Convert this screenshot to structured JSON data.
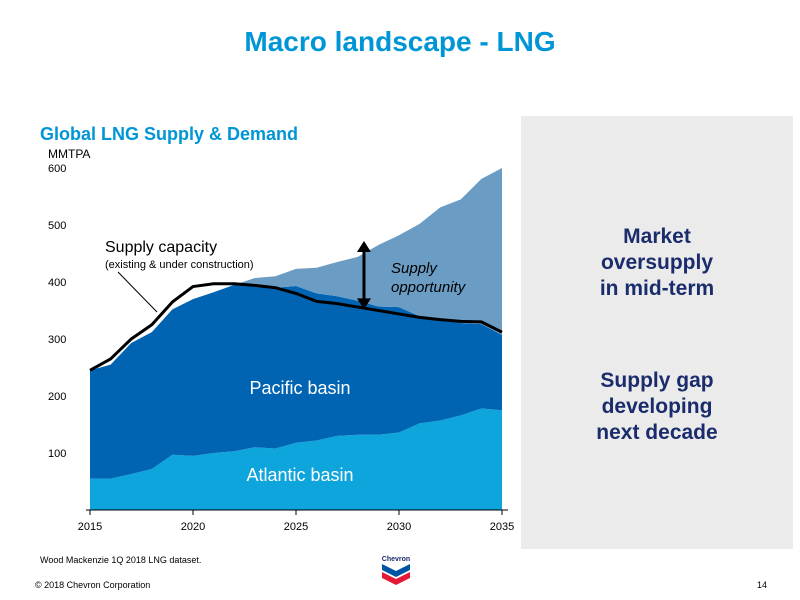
{
  "slide": {
    "title": "Macro landscape - LNG",
    "source_note": "Wood Mackenzie 1Q 2018 LNG dataset.",
    "copyright": "© 2018 Chevron Corporation",
    "page_number": "14",
    "logo_text": "Chevron"
  },
  "side_panel": {
    "line1": "Market",
    "line2": "oversupply",
    "line3": "in mid-term",
    "line4": "Supply gap",
    "line5": "developing",
    "line6": "next decade"
  },
  "chart_data": {
    "type": "area",
    "title": "Global LNG Supply & Demand",
    "ylabel": "MMTPA",
    "xlim": [
      2015,
      2035
    ],
    "ylim": [
      0,
      600
    ],
    "x_ticks": [
      2015,
      2020,
      2025,
      2030,
      2035
    ],
    "y_ticks": [
      100,
      200,
      300,
      400,
      500,
      600
    ],
    "x": [
      2015,
      2016,
      2017,
      2018,
      2019,
      2020,
      2021,
      2022,
      2023,
      2024,
      2025,
      2026,
      2027,
      2028,
      2029,
      2030,
      2031,
      2032,
      2033,
      2034,
      2035
    ],
    "series": [
      {
        "name": "Atlantic basin",
        "color": "#0ea5dc",
        "values": [
          55,
          55,
          63,
          72,
          97,
          95,
          100,
          103,
          110,
          108,
          118,
          122,
          130,
          132,
          132,
          136,
          152,
          157,
          166,
          178,
          175
        ]
      },
      {
        "name": "Pacific basin",
        "color": "#0064b3",
        "values": [
          190,
          200,
          230,
          240,
          255,
          275,
          282,
          292,
          287,
          282,
          275,
          258,
          245,
          235,
          225,
          220,
          188,
          178,
          162,
          148,
          132
        ]
      },
      {
        "name": "Supply opportunity",
        "color": "#6a9cc4",
        "values": [
          0,
          0,
          0,
          0,
          0,
          0,
          0,
          0,
          10,
          20,
          30,
          45,
          60,
          77,
          108,
          126,
          162,
          196,
          217,
          255,
          293
        ]
      }
    ],
    "supply_capacity": {
      "name": "Supply capacity",
      "note": "(existing & under construction)",
      "values": [
        245,
        265,
        300,
        325,
        365,
        392,
        397,
        397,
        394,
        390,
        380,
        366,
        362,
        356,
        350,
        344,
        338,
        334,
        331,
        330,
        312
      ]
    },
    "annotations": {
      "pacific_label": "Pacific basin",
      "atlantic_label": "Atlantic basin",
      "supply_opportunity_line1": "Supply",
      "supply_opportunity_line2": "opportunity",
      "arrow_year": 2028.3,
      "arrow_from": 352,
      "arrow_to": 472
    }
  }
}
